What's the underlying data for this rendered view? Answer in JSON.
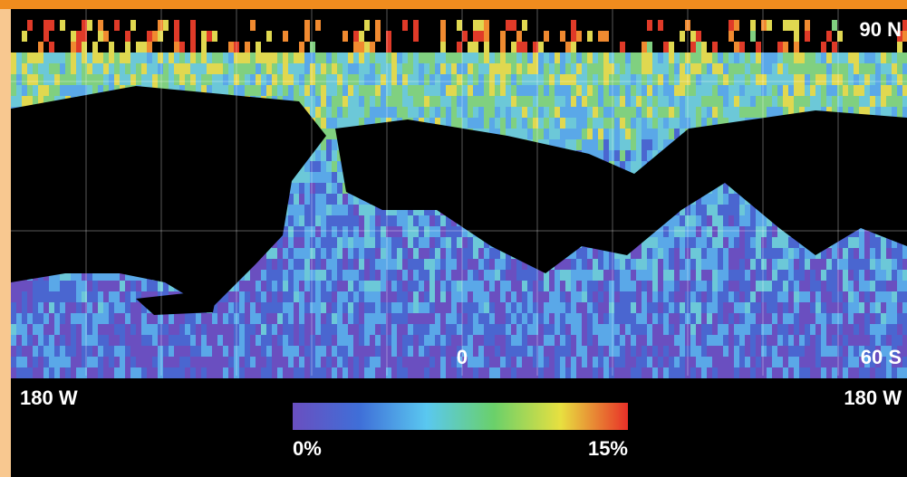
{
  "map": {
    "labels": {
      "north": "90 N",
      "equator": "0",
      "south": "60 S",
      "west": "180 W",
      "east": "180 W"
    },
    "legend": {
      "min": "0%",
      "max": "15%"
    }
  }
}
